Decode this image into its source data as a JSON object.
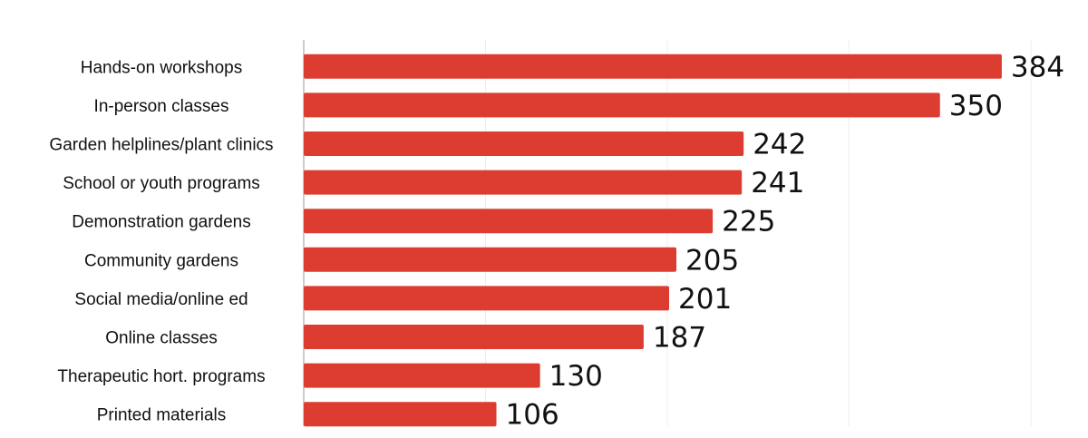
{
  "chart_data": {
    "type": "bar",
    "orientation": "horizontal",
    "categories": [
      "Hands-on workshops",
      "In-person classes",
      "Garden helplines/plant clinics",
      "School or youth programs",
      "Demonstration gardens",
      "Community gardens",
      "Social media/online ed",
      "Online classes",
      "Therapeutic hort. programs",
      "Printed materials"
    ],
    "values": [
      384,
      350,
      242,
      241,
      225,
      205,
      201,
      187,
      130,
      106
    ],
    "title": "",
    "xlabel": "",
    "ylabel": "",
    "xlim": [
      0,
      400
    ],
    "grid": "vertical gridlines every 100",
    "legend": "none",
    "bar_color": "#dd3d31",
    "axis_color": "#bbbbbb",
    "grid_color": "#eeeeee",
    "text_color": "#111111"
  }
}
